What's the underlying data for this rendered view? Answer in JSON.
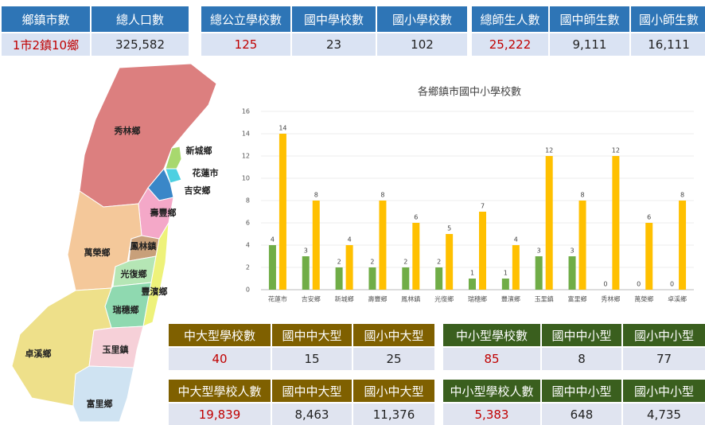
{
  "stats": [
    {
      "headers": [
        "鄉鎮市數",
        "總人口數"
      ],
      "values": [
        "1市2鎮10鄉",
        "325,582"
      ]
    },
    {
      "headers": [
        "總公立學校數",
        "國中學校數",
        "國小學校數"
      ],
      "values": [
        "125",
        "23",
        "102"
      ]
    },
    {
      "headers": [
        "總師生人數",
        "國中師生數",
        "國小師生數"
      ],
      "values": [
        "25,222",
        "9,111",
        "16,111"
      ]
    }
  ],
  "bottom": [
    {
      "headers": [
        "中大型學校數",
        "國中中大型",
        "國小中大型"
      ],
      "values": [
        "40",
        "15",
        "25"
      ]
    },
    {
      "headers": [
        "中小型學校數",
        "國中中小型",
        "國小中小型"
      ],
      "values": [
        "85",
        "8",
        "77"
      ]
    },
    {
      "headers": [
        "中大型學校人數",
        "國中中大型",
        "國小中大型"
      ],
      "values": [
        "19,839",
        "8,463",
        "11,376"
      ]
    },
    {
      "headers": [
        "中小型學校人數",
        "國中中小型",
        "國小中小型"
      ],
      "values": [
        "5,383",
        "648",
        "4,735"
      ]
    }
  ],
  "map": {
    "labels": [
      "秀林鄉",
      "新城鄉",
      "花蓮市",
      "吉安鄉",
      "壽豐鄉",
      "鳳林鎮",
      "萬榮鄉",
      "光復鄉",
      "豐濱鄉",
      "瑞穗鄉",
      "卓溪鄉",
      "玉里鎮",
      "富里鄉"
    ]
  },
  "chart_data": {
    "type": "bar",
    "title": "各鄉鎮市國中小學校數",
    "categories": [
      "花蓮市",
      "吉安鄉",
      "新城鄉",
      "壽豐鄉",
      "鳳林鎮",
      "光復鄉",
      "瑞穗鄉",
      "豐濱鄉",
      "玉里鎮",
      "富里鄉",
      "秀林鄉",
      "萬榮鄉",
      "卓溪鄉"
    ],
    "series": [
      {
        "color": "#70ad47",
        "values": [
          4,
          3,
          2,
          2,
          2,
          2,
          1,
          1,
          3,
          3,
          0,
          0,
          0
        ]
      },
      {
        "color": "#ffc000",
        "values": [
          14,
          8,
          4,
          8,
          6,
          5,
          7,
          4,
          12,
          8,
          12,
          6,
          8
        ]
      }
    ],
    "ylim": [
      0,
      16
    ],
    "yticks": [
      0,
      2,
      4,
      6,
      8,
      10,
      12,
      14,
      16
    ]
  }
}
